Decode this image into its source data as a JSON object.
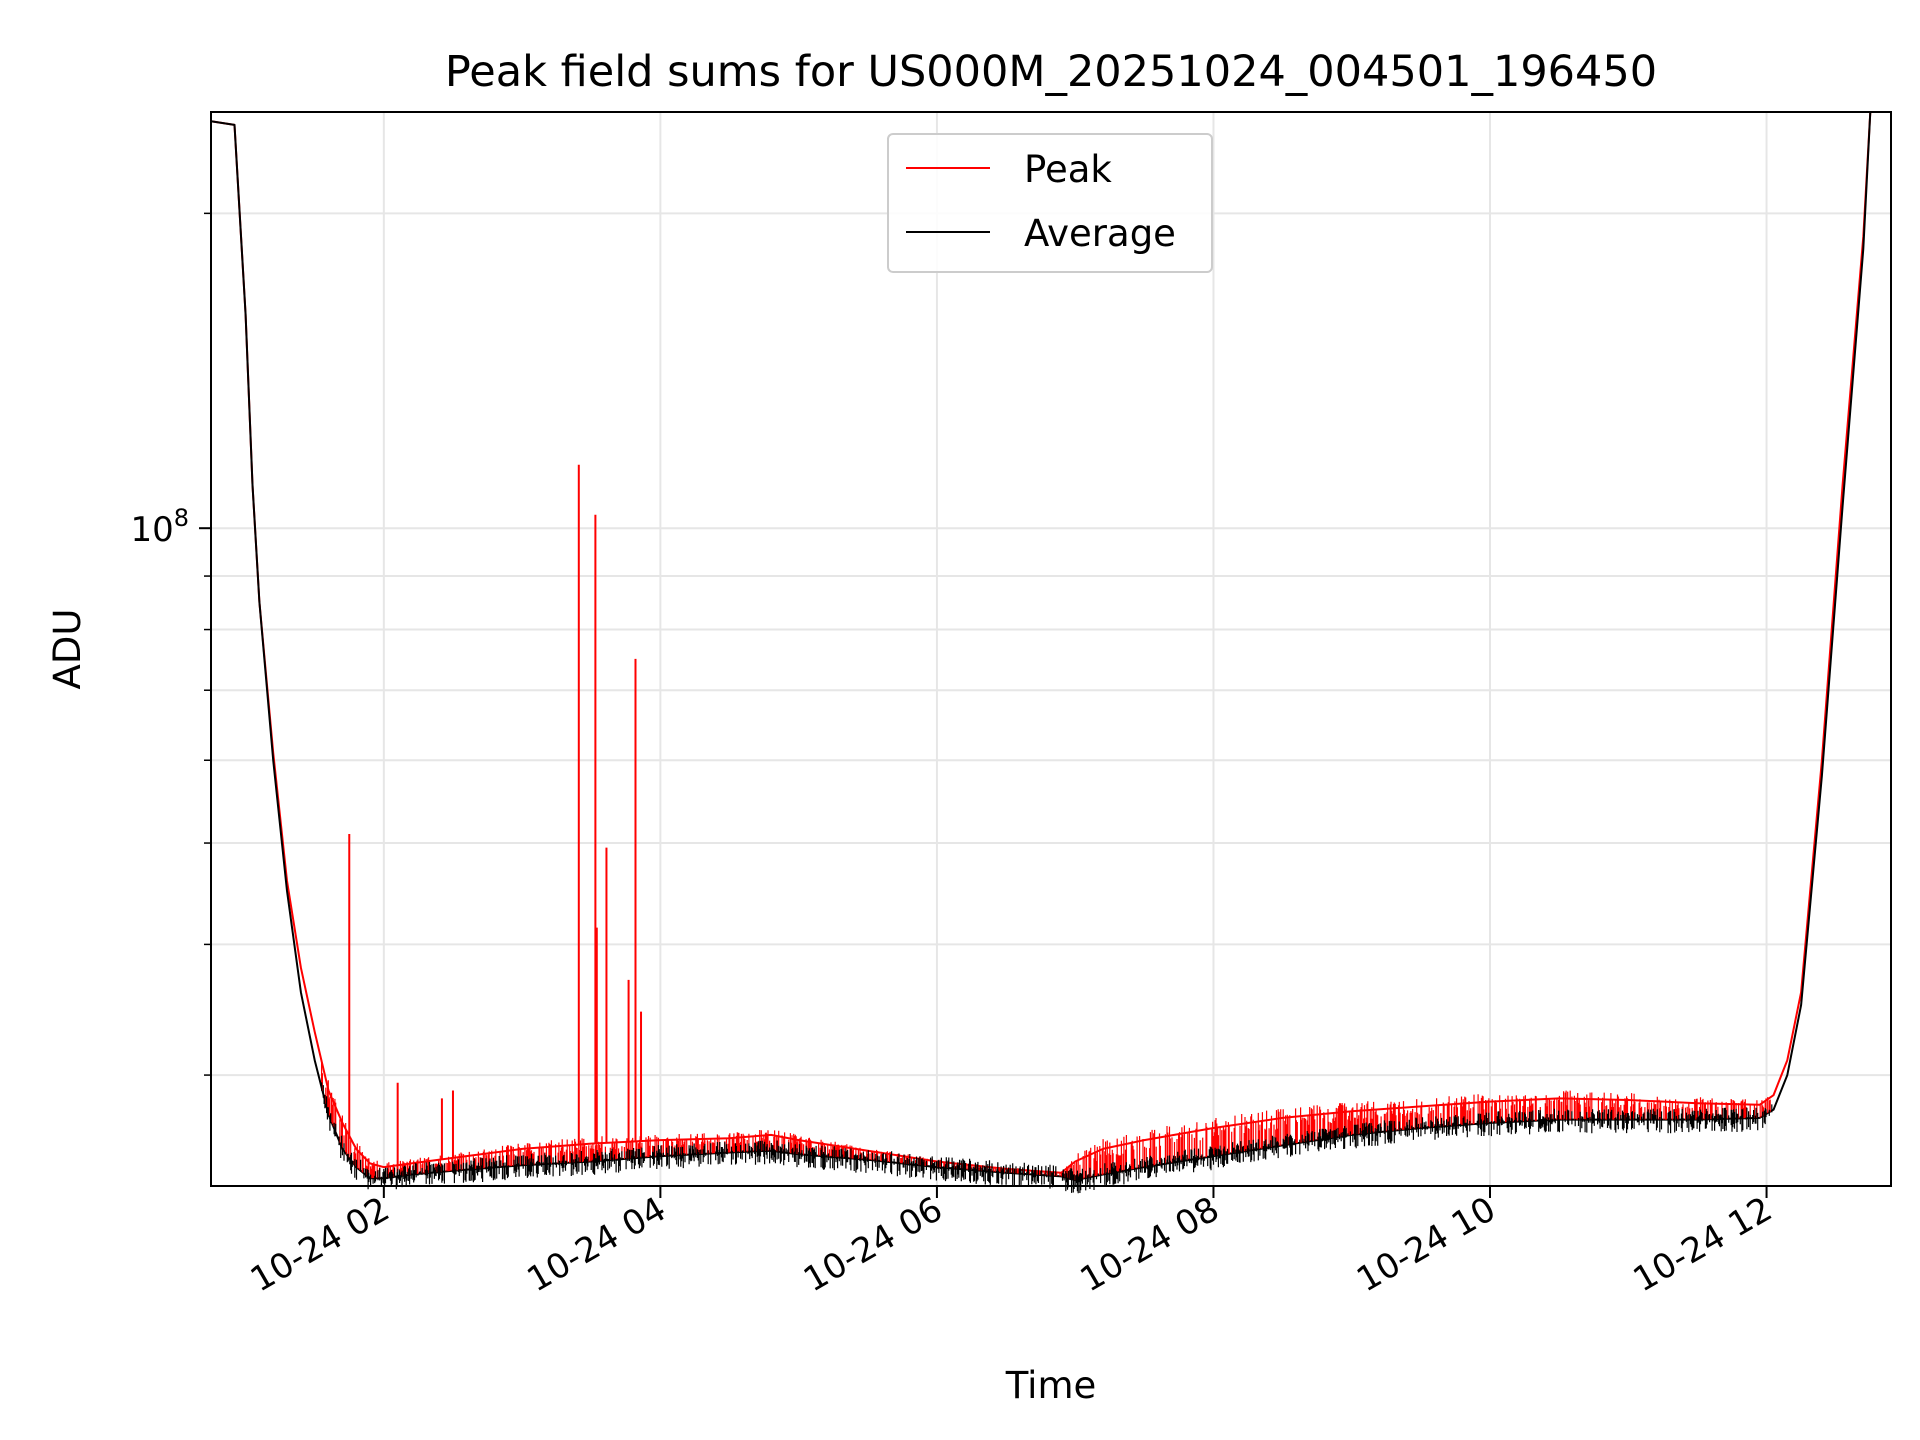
{
  "chart_data": {
    "type": "line",
    "title": "Peak field sums for US000M_20251024_004501_196450",
    "xlabel": "Time",
    "ylabel": "ADU",
    "yscale": "log",
    "xlim": [
      0.75,
      12.9
    ],
    "ylim": [
      23500000,
      250000000
    ],
    "grid": true,
    "legend_position": "top-center",
    "x_tick_values": [
      2,
      4,
      6,
      8,
      10,
      12
    ],
    "x_tick_labels": [
      "10-24 02",
      "10-24 04",
      "10-24 06",
      "10-24 08",
      "10-24 10",
      "10-24 12"
    ],
    "y_tick_major": [
      {
        "value": 100000000,
        "base": "10",
        "exp": "8"
      }
    ],
    "y_tick_minor": [
      30000000,
      40000000,
      50000000,
      60000000,
      70000000,
      80000000,
      90000000,
      200000000
    ],
    "series": [
      {
        "name": "Peak",
        "color": "#ff0000",
        "x": [
          0.75,
          0.92,
          1.0,
          1.05,
          1.1,
          1.2,
          1.3,
          1.4,
          1.5,
          1.6,
          1.7,
          1.8,
          1.9,
          2.0,
          2.2,
          2.5,
          3.0,
          3.5,
          4.0,
          4.5,
          4.8,
          5.0,
          5.5,
          6.0,
          6.5,
          6.9,
          7.0,
          7.2,
          7.5,
          8.0,
          8.5,
          9.0,
          9.5,
          10.0,
          10.5,
          11.0,
          11.5,
          11.95,
          12.05,
          12.15,
          12.25,
          12.4,
          12.55,
          12.7,
          12.75
        ],
        "values": [
          245000000,
          243000000,
          160000000,
          110000000,
          85000000,
          61000000,
          46000000,
          38000000,
          33000000,
          29000000,
          27000000,
          25500000,
          24700000,
          24500000,
          24700000,
          25000000,
          25500000,
          25800000,
          26000000,
          26100000,
          26300000,
          26000000,
          25400000,
          24800000,
          24400000,
          24200000,
          24800000,
          25500000,
          26000000,
          26700000,
          27300000,
          27700000,
          28000000,
          28300000,
          28500000,
          28400000,
          28200000,
          28100000,
          28700000,
          31000000,
          36000000,
          60000000,
          110000000,
          190000000,
          250000000
        ]
      },
      {
        "name": "Average",
        "color": "#000000",
        "x": [
          0.75,
          0.92,
          1.0,
          1.05,
          1.1,
          1.2,
          1.3,
          1.4,
          1.5,
          1.6,
          1.7,
          1.8,
          1.9,
          2.0,
          2.2,
          2.5,
          3.0,
          3.5,
          4.0,
          4.5,
          4.8,
          5.0,
          5.5,
          6.0,
          6.5,
          6.9,
          7.0,
          7.2,
          7.5,
          8.0,
          8.5,
          9.0,
          9.5,
          10.0,
          10.5,
          11.0,
          11.5,
          11.95,
          12.05,
          12.15,
          12.25,
          12.4,
          12.55,
          12.7,
          12.75
        ],
        "values": [
          245000000,
          243000000,
          160000000,
          110000000,
          85000000,
          60000000,
          45000000,
          36000000,
          31000000,
          27500000,
          25500000,
          24500000,
          23900000,
          23900000,
          24100000,
          24300000,
          24600000,
          24800000,
          25100000,
          25300000,
          25400000,
          25200000,
          24900000,
          24500000,
          24200000,
          24000000,
          23800000,
          24100000,
          24500000,
          25100000,
          25700000,
          26300000,
          26700000,
          27000000,
          27200000,
          27200000,
          27200000,
          27300000,
          27800000,
          30000000,
          35000000,
          58000000,
          105000000,
          185000000,
          250000000
        ]
      }
    ],
    "spikes": [
      {
        "x": 1.75,
        "value": 51000000
      },
      {
        "x": 2.1,
        "value": 29500000
      },
      {
        "x": 2.42,
        "value": 28500000
      },
      {
        "x": 2.5,
        "value": 29000000
      },
      {
        "x": 3.41,
        "value": 115000000
      },
      {
        "x": 3.53,
        "value": 103000000
      },
      {
        "x": 3.54,
        "value": 41500000
      },
      {
        "x": 3.61,
        "value": 49500000
      },
      {
        "x": 3.77,
        "value": 37000000
      },
      {
        "x": 3.82,
        "value": 75000000
      },
      {
        "x": 3.86,
        "value": 34500000
      }
    ]
  }
}
